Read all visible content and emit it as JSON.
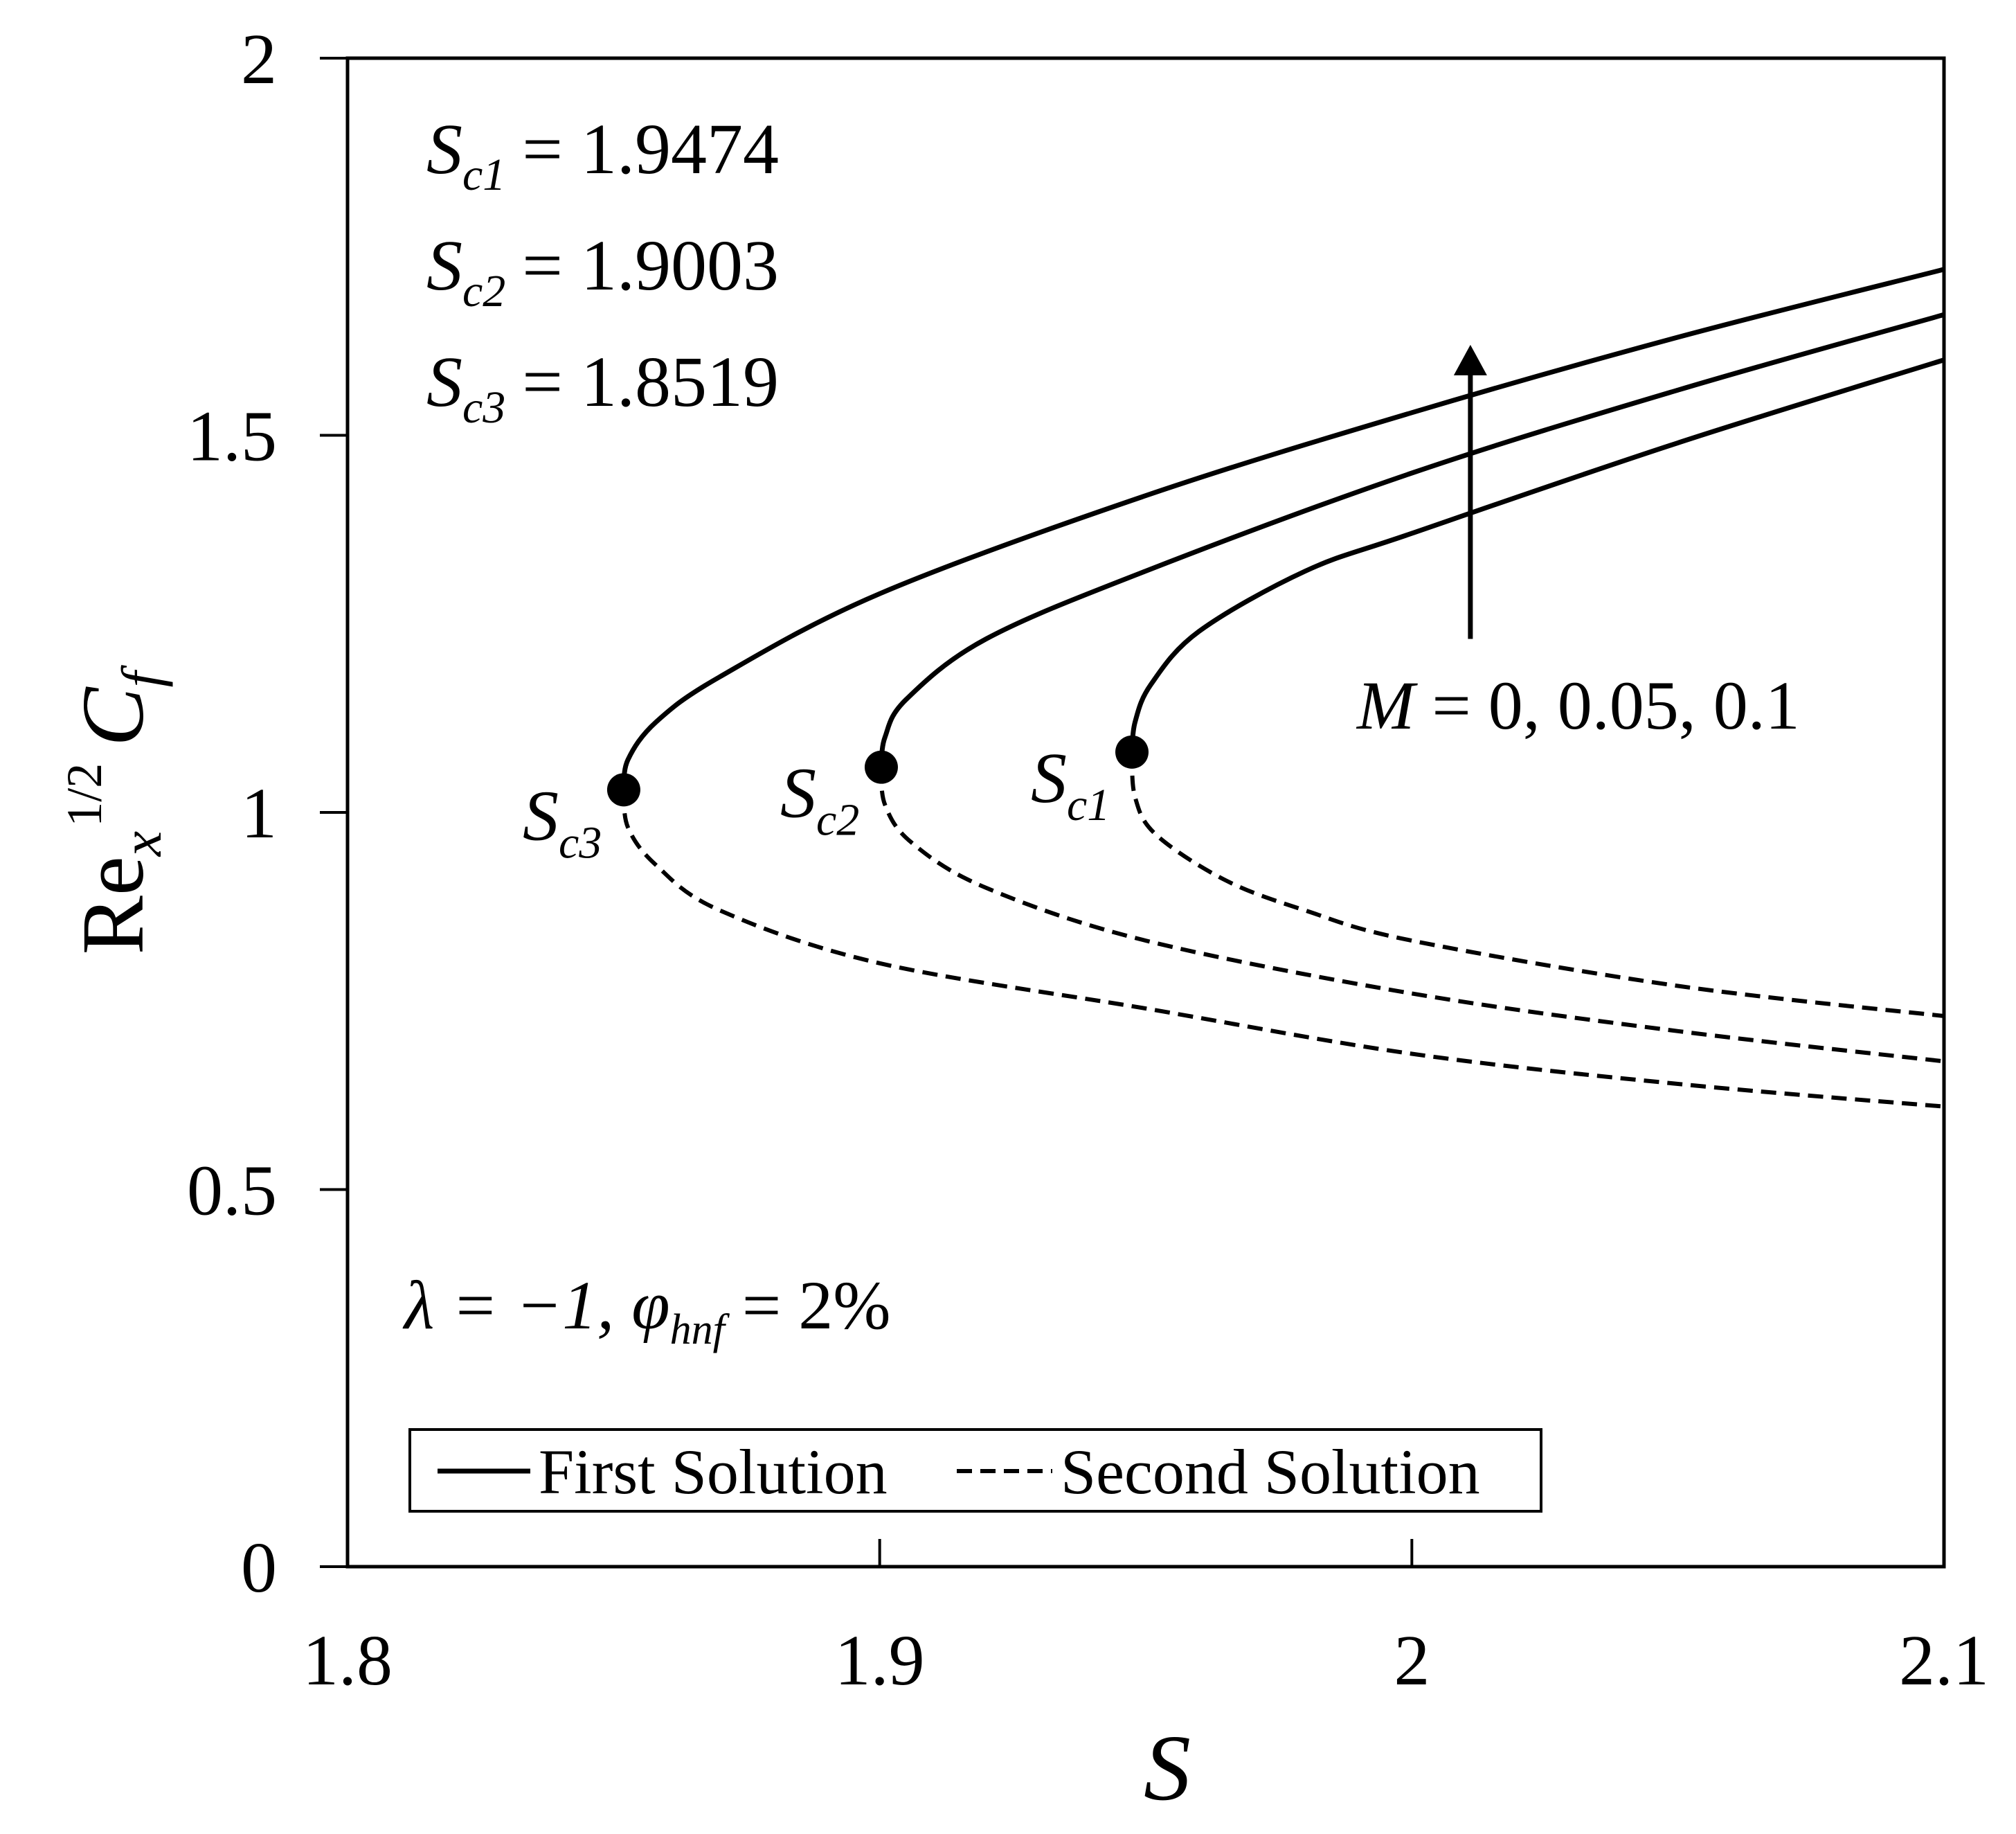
{
  "chart_data": {
    "type": "line",
    "xlabel": "S",
    "ylabel": {
      "base": "Re",
      "sub": "x",
      "sup": "1/2",
      "var": "C",
      "var_sub": "f"
    },
    "xlim": [
      1.8,
      2.1
    ],
    "ylim": [
      0,
      2
    ],
    "x_ticks": [
      1.8,
      1.9,
      2.0,
      2.1
    ],
    "x_tick_labels": [
      "1.8",
      "1.9",
      "2",
      "2.1"
    ],
    "y_ticks": [
      0,
      0.5,
      1,
      1.5,
      2
    ],
    "y_tick_labels": [
      "0",
      "0.5",
      "1",
      "1.5",
      "2"
    ],
    "grid": false,
    "legend": {
      "position": "bottom",
      "entries": [
        {
          "label": "First Solution",
          "style": "solid"
        },
        {
          "label": "Second Solution",
          "style": "dashed"
        }
      ]
    },
    "critical_values": [
      {
        "label": "S",
        "sub": "c1",
        "eq": "= 1.9474"
      },
      {
        "label": "S",
        "sub": "c2",
        "eq": "= 1.9003"
      },
      {
        "label": "S",
        "sub": "c3",
        "eq": "= 1.8519"
      }
    ],
    "param_note": {
      "lambda": "λ = −1, ",
      "phi": "φ",
      "phi_sub": "hnf",
      "rest": " = 2%"
    },
    "arrow_note": {
      "var": "M",
      "rest": " = 0, 0.05, 0.1"
    },
    "series": [
      {
        "style": "solid",
        "x": [
          1.9474,
          1.948,
          1.951,
          1.96,
          1.98,
          2.0,
          2.05,
          2.1
        ],
        "y": [
          1.08,
          1.12,
          1.17,
          1.24,
          1.32,
          1.37,
          1.49,
          1.6
        ]
      },
      {
        "style": "dashed",
        "x": [
          1.9474,
          1.948,
          1.952,
          1.965,
          1.98,
          2.0,
          2.05,
          2.1
        ],
        "y": [
          1.08,
          1.02,
          0.97,
          0.91,
          0.87,
          0.83,
          0.77,
          0.73
        ]
      },
      {
        "style": "solid",
        "x": [
          1.9003,
          1.901,
          1.905,
          1.92,
          1.95,
          2.0,
          2.05,
          2.1
        ],
        "y": [
          1.06,
          1.1,
          1.15,
          1.23,
          1.32,
          1.45,
          1.56,
          1.66
        ]
      },
      {
        "style": "dashed",
        "x": [
          1.9003,
          1.901,
          1.906,
          1.92,
          1.95,
          2.0,
          2.05,
          2.1
        ],
        "y": [
          1.06,
          1.01,
          0.96,
          0.9,
          0.83,
          0.76,
          0.71,
          0.67
        ]
      },
      {
        "style": "solid",
        "x": [
          1.8519,
          1.8527,
          1.858,
          1.87,
          1.9,
          1.95,
          2.0,
          2.05,
          2.1
        ],
        "y": [
          1.03,
          1.07,
          1.12,
          1.18,
          1.29,
          1.42,
          1.53,
          1.63,
          1.72
        ]
      },
      {
        "style": "dashed",
        "x": [
          1.8519,
          1.8527,
          1.858,
          1.87,
          1.9,
          1.95,
          2.0,
          2.05,
          2.1
        ],
        "y": [
          1.03,
          0.98,
          0.93,
          0.87,
          0.8,
          0.74,
          0.68,
          0.64,
          0.61
        ]
      }
    ],
    "critical_points": [
      {
        "x": 1.9474,
        "y": 1.08,
        "label": "S",
        "sub": "c1"
      },
      {
        "x": 1.9003,
        "y": 1.06,
        "label": "S",
        "sub": "c2"
      },
      {
        "x": 1.8519,
        "y": 1.03,
        "label": "S",
        "sub": "c3"
      }
    ],
    "arrow": {
      "x": 2.011,
      "y_from": 1.23,
      "y_to": 1.62
    }
  }
}
